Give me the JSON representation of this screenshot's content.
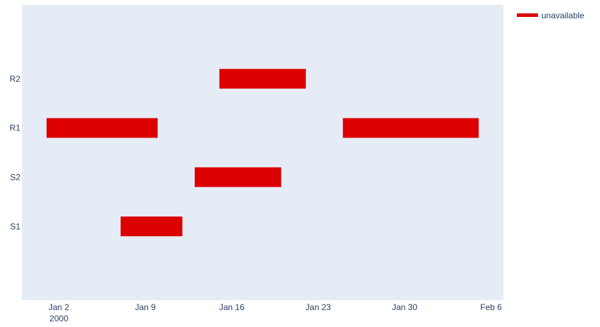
{
  "chart_data": {
    "type": "gantt",
    "title": "",
    "xlabel": "",
    "ylabel": "",
    "x_axis": {
      "type": "date",
      "range": [
        "1999-12-30",
        "2000-02-07"
      ],
      "ticks": [
        {
          "date": "2000-01-02",
          "label": "Jan 2",
          "sublabel": "2000"
        },
        {
          "date": "2000-01-09",
          "label": "Jan 9",
          "sublabel": ""
        },
        {
          "date": "2000-01-16",
          "label": "Jan 16",
          "sublabel": ""
        },
        {
          "date": "2000-01-23",
          "label": "Jan 23",
          "sublabel": ""
        },
        {
          "date": "2000-01-30",
          "label": "Jan 30",
          "sublabel": ""
        },
        {
          "date": "2000-02-06",
          "label": "Feb 6",
          "sublabel": ""
        }
      ]
    },
    "categories": [
      "S1",
      "S2",
      "R1",
      "R2"
    ],
    "series": [
      {
        "name": "unavailable",
        "color": "#dd0000",
        "bars": [
          {
            "resource": "R2",
            "start": "2000-01-15",
            "end": "2000-01-22"
          },
          {
            "resource": "R1",
            "start": "2000-01-01",
            "end": "2000-01-10"
          },
          {
            "resource": "R1",
            "start": "2000-01-25",
            "end": "2000-02-05"
          },
          {
            "resource": "S2",
            "start": "2000-01-13",
            "end": "2000-01-20"
          },
          {
            "resource": "S1",
            "start": "2000-01-07",
            "end": "2000-01-12"
          }
        ]
      }
    ],
    "grid": false,
    "legend": "top-right",
    "plot_background": "#e5ecf6"
  }
}
